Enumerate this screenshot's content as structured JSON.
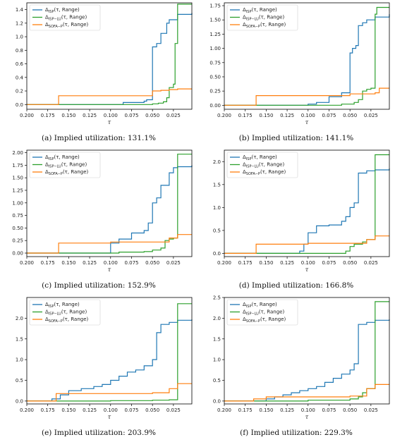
{
  "legend_labels": [
    "Δ_ISP(τ, Range)",
    "Δ_ISP−LU(τ, Range)",
    "Δ_SOFA−P(τ, Range)"
  ],
  "colors": {
    "isp": "#1f77b4",
    "isp_lu": "#2ca02c",
    "sofa_p": "#ff7f0e"
  },
  "chart_data": [
    {
      "type": "line",
      "caption": "(a) Implied utilization: 131.1%",
      "xlabel": "τ",
      "ylabel": "",
      "xlim": [
        0.2,
        0.003
      ],
      "ylim": [
        -0.07,
        1.5
      ],
      "x_ticks": [
        0.2,
        0.175,
        0.15,
        0.125,
        0.1,
        0.075,
        0.05,
        0.025
      ],
      "x_tick_labels": [
        "0.200",
        "0.175",
        "0.150",
        "0.125",
        "0.100",
        "0.075",
        "0.050",
        "0.025"
      ],
      "y_ticks": [
        0.0,
        0.2,
        0.4,
        0.6,
        0.8,
        1.0,
        1.2,
        1.4
      ],
      "y_tick_labels": [
        "0.0",
        "0.2",
        "0.4",
        "0.6",
        "0.8",
        "1.0",
        "1.2",
        "1.4"
      ],
      "grid": false,
      "legend": "top-left",
      "series": [
        {
          "name": "Δ_ISP(τ, Range)",
          "color": "#1f77b4",
          "x": [
            0.2,
            0.085,
            0.06,
            0.057,
            0.05,
            0.045,
            0.04,
            0.033,
            0.03,
            0.02,
            0.003
          ],
          "y": [
            0,
            0.03,
            0.05,
            0.07,
            0.85,
            0.9,
            1.05,
            1.2,
            1.25,
            1.33,
            1.35
          ]
        },
        {
          "name": "Δ_ISP−LU(τ, Range)",
          "color": "#2ca02c",
          "x": [
            0.2,
            0.05,
            0.043,
            0.037,
            0.033,
            0.03,
            0.025,
            0.023,
            0.02,
            0.003
          ],
          "y": [
            0,
            0.01,
            0.02,
            0.04,
            0.1,
            0.25,
            0.3,
            0.9,
            1.48,
            1.48
          ]
        },
        {
          "name": "Δ_SOFA−P(τ, Range)",
          "color": "#ff7f0e",
          "x": [
            0.2,
            0.162,
            0.05,
            0.04,
            0.03,
            0.02,
            0.003
          ],
          "y": [
            0,
            0.13,
            0.2,
            0.21,
            0.22,
            0.23,
            0.23
          ]
        }
      ]
    },
    {
      "type": "line",
      "caption": "(b) Implied utilization: 141.1%",
      "xlabel": "τ",
      "ylabel": "",
      "xlim": [
        0.2,
        0.003
      ],
      "ylim": [
        -0.07,
        1.8
      ],
      "x_ticks": [
        0.2,
        0.175,
        0.15,
        0.125,
        0.1,
        0.075,
        0.05,
        0.025
      ],
      "x_tick_labels": [
        "0.200",
        "0.175",
        "0.150",
        "0.125",
        "0.100",
        "0.075",
        "0.050",
        "0.025"
      ],
      "y_ticks": [
        0.0,
        0.25,
        0.5,
        0.75,
        1.0,
        1.25,
        1.5,
        1.75
      ],
      "y_tick_labels": [
        "0.00",
        "0.25",
        "0.50",
        "0.75",
        "1.00",
        "1.25",
        "1.50",
        "1.75"
      ],
      "grid": false,
      "legend": "top-left",
      "series": [
        {
          "name": "Δ_ISP(τ, Range)",
          "color": "#1f77b4",
          "x": [
            0.2,
            0.1,
            0.09,
            0.075,
            0.06,
            0.05,
            0.047,
            0.043,
            0.04,
            0.035,
            0.03,
            0.02,
            0.003
          ],
          "y": [
            0,
            0.02,
            0.05,
            0.15,
            0.22,
            0.92,
            1.0,
            1.05,
            1.4,
            1.45,
            1.5,
            1.55,
            1.6
          ]
        },
        {
          "name": "Δ_ISP−LU(τ, Range)",
          "color": "#2ca02c",
          "x": [
            0.2,
            0.06,
            0.045,
            0.04,
            0.035,
            0.03,
            0.025,
            0.02,
            0.018,
            0.003
          ],
          "y": [
            0,
            0.02,
            0.05,
            0.1,
            0.25,
            0.28,
            0.3,
            1.6,
            1.72,
            1.72
          ]
        },
        {
          "name": "Δ_SOFA−P(τ, Range)",
          "color": "#ff7f0e",
          "x": [
            0.2,
            0.162,
            0.05,
            0.02,
            0.015,
            0.003
          ],
          "y": [
            0,
            0.17,
            0.2,
            0.22,
            0.3,
            0.3
          ]
        }
      ]
    },
    {
      "type": "line",
      "caption": "(c) Implied utilization: 152.9%",
      "xlabel": "τ",
      "ylabel": "",
      "xlim": [
        0.2,
        0.003
      ],
      "ylim": [
        -0.07,
        2.05
      ],
      "x_ticks": [
        0.2,
        0.175,
        0.15,
        0.125,
        0.1,
        0.075,
        0.05,
        0.025
      ],
      "x_tick_labels": [
        "0.200",
        "0.175",
        "0.150",
        "0.125",
        "0.100",
        "0.075",
        "0.050",
        "0.025"
      ],
      "y_ticks": [
        0.0,
        0.25,
        0.5,
        0.75,
        1.0,
        1.25,
        1.5,
        1.75,
        2.0
      ],
      "y_tick_labels": [
        "0.00",
        "0.25",
        "0.50",
        "0.75",
        "1.00",
        "1.25",
        "1.50",
        "1.75",
        "2.00"
      ],
      "grid": false,
      "legend": "top-left",
      "series": [
        {
          "name": "Δ_ISP(τ, Range)",
          "color": "#1f77b4",
          "x": [
            0.2,
            0.1,
            0.09,
            0.075,
            0.06,
            0.055,
            0.05,
            0.045,
            0.04,
            0.03,
            0.025,
            0.02,
            0.003
          ],
          "y": [
            0,
            0.2,
            0.28,
            0.4,
            0.45,
            0.6,
            1.0,
            1.1,
            1.35,
            1.6,
            1.7,
            1.72,
            1.75
          ]
        },
        {
          "name": "Δ_ISP−LU(τ, Range)",
          "color": "#2ca02c",
          "x": [
            0.2,
            0.09,
            0.06,
            0.05,
            0.04,
            0.035,
            0.03,
            0.025,
            0.02,
            0.003
          ],
          "y": [
            0,
            0.02,
            0.03,
            0.06,
            0.1,
            0.25,
            0.28,
            0.3,
            1.97,
            1.97
          ]
        },
        {
          "name": "Δ_SOFA−P(τ, Range)",
          "color": "#ff7f0e",
          "x": [
            0.2,
            0.162,
            0.1,
            0.03,
            0.02,
            0.003
          ],
          "y": [
            0,
            0.2,
            0.22,
            0.3,
            0.37,
            0.37
          ]
        }
      ]
    },
    {
      "type": "line",
      "caption": "(d) Implied utilization: 166.8%",
      "xlabel": "τ",
      "ylabel": "",
      "xlim": [
        0.2,
        0.003
      ],
      "ylim": [
        -0.07,
        2.25
      ],
      "x_ticks": [
        0.2,
        0.175,
        0.15,
        0.125,
        0.1,
        0.075,
        0.05,
        0.025
      ],
      "x_tick_labels": [
        "0.200",
        "0.175",
        "0.150",
        "0.125",
        "0.100",
        "0.075",
        "0.050",
        "0.025"
      ],
      "y_ticks": [
        0.0,
        0.5,
        1.0,
        1.5,
        2.0
      ],
      "y_tick_labels": [
        "0.0",
        "0.5",
        "1.0",
        "1.5",
        "2.0"
      ],
      "grid": false,
      "legend": "top-left",
      "series": [
        {
          "name": "Δ_ISP(τ, Range)",
          "color": "#1f77b4",
          "x": [
            0.2,
            0.11,
            0.105,
            0.1,
            0.09,
            0.075,
            0.06,
            0.055,
            0.05,
            0.045,
            0.04,
            0.03,
            0.02,
            0.003
          ],
          "y": [
            0,
            0.05,
            0.2,
            0.45,
            0.6,
            0.62,
            0.7,
            0.8,
            1.0,
            1.1,
            1.75,
            1.8,
            1.82,
            1.85
          ]
        },
        {
          "name": "Δ_ISP−LU(τ, Range)",
          "color": "#2ca02c",
          "x": [
            0.2,
            0.055,
            0.05,
            0.045,
            0.035,
            0.03,
            0.02,
            0.003
          ],
          "y": [
            0,
            0.05,
            0.15,
            0.2,
            0.25,
            0.3,
            2.15,
            2.15
          ]
        },
        {
          "name": "Δ_SOFA−P(τ, Range)",
          "color": "#ff7f0e",
          "x": [
            0.2,
            0.162,
            0.1,
            0.03,
            0.02,
            0.003
          ],
          "y": [
            0,
            0.2,
            0.22,
            0.3,
            0.38,
            0.38
          ]
        }
      ]
    },
    {
      "type": "line",
      "caption": "(e) Implied utilization: 203.9%",
      "xlabel": "τ",
      "ylabel": "",
      "xlim": [
        0.2,
        0.003
      ],
      "ylim": [
        -0.07,
        2.5
      ],
      "x_ticks": [
        0.2,
        0.175,
        0.15,
        0.125,
        0.1,
        0.075,
        0.05,
        0.025
      ],
      "x_tick_labels": [
        "0.200",
        "0.175",
        "0.150",
        "0.125",
        "0.100",
        "0.075",
        "0.050",
        "0.025"
      ],
      "y_ticks": [
        0.0,
        0.5,
        1.0,
        1.5,
        2.0
      ],
      "y_tick_labels": [
        "0.0",
        "0.5",
        "1.0",
        "1.5",
        "2.0"
      ],
      "grid": false,
      "legend": "top-left",
      "series": [
        {
          "name": "Δ_ISP(τ, Range)",
          "color": "#1f77b4",
          "x": [
            0.2,
            0.17,
            0.16,
            0.15,
            0.135,
            0.12,
            0.11,
            0.1,
            0.09,
            0.08,
            0.07,
            0.06,
            0.05,
            0.045,
            0.04,
            0.03,
            0.02,
            0.003
          ],
          "y": [
            0,
            0.05,
            0.15,
            0.25,
            0.3,
            0.35,
            0.4,
            0.5,
            0.6,
            0.7,
            0.75,
            0.85,
            1.0,
            1.65,
            1.85,
            1.9,
            1.95,
            1.97
          ]
        },
        {
          "name": "Δ_ISP−LU(τ, Range)",
          "color": "#2ca02c",
          "x": [
            0.2,
            0.1,
            0.05,
            0.03,
            0.02,
            0.003
          ],
          "y": [
            0,
            0.01,
            0.02,
            0.03,
            2.35,
            2.35
          ]
        },
        {
          "name": "Δ_SOFA−P(τ, Range)",
          "color": "#ff7f0e",
          "x": [
            0.2,
            0.165,
            0.05,
            0.03,
            0.02,
            0.003
          ],
          "y": [
            0,
            0.18,
            0.2,
            0.3,
            0.42,
            0.42
          ]
        }
      ]
    },
    {
      "type": "line",
      "caption": "(f) Implied utilization: 229.3%",
      "xlabel": "τ",
      "ylabel": "",
      "xlim": [
        0.2,
        0.003
      ],
      "ylim": [
        -0.07,
        2.5
      ],
      "x_ticks": [
        0.2,
        0.175,
        0.15,
        0.125,
        0.1,
        0.075,
        0.05,
        0.025
      ],
      "x_tick_labels": [
        "0.200",
        "0.175",
        "0.150",
        "0.125",
        "0.100",
        "0.075",
        "0.050",
        "0.025"
      ],
      "y_ticks": [
        0.0,
        0.5,
        1.0,
        1.5,
        2.0,
        2.5
      ],
      "y_tick_labels": [
        "0.0",
        "0.5",
        "1.0",
        "1.5",
        "2.0",
        "2.5"
      ],
      "grid": false,
      "legend": "top-left",
      "series": [
        {
          "name": "Δ_ISP(τ, Range)",
          "color": "#1f77b4",
          "x": [
            0.2,
            0.15,
            0.14,
            0.13,
            0.12,
            0.11,
            0.1,
            0.09,
            0.08,
            0.07,
            0.06,
            0.05,
            0.045,
            0.04,
            0.03,
            0.02,
            0.003
          ],
          "y": [
            0,
            0.05,
            0.1,
            0.15,
            0.2,
            0.25,
            0.3,
            0.35,
            0.45,
            0.55,
            0.65,
            0.75,
            0.9,
            1.85,
            1.9,
            1.95,
            1.97
          ]
        },
        {
          "name": "Δ_ISP−LU(τ, Range)",
          "color": "#2ca02c",
          "x": [
            0.2,
            0.1,
            0.05,
            0.04,
            0.035,
            0.03,
            0.02,
            0.003
          ],
          "y": [
            0,
            0.02,
            0.05,
            0.1,
            0.2,
            0.3,
            2.4,
            2.4
          ]
        },
        {
          "name": "Δ_SOFA−P(τ, Range)",
          "color": "#ff7f0e",
          "x": [
            0.2,
            0.165,
            0.15,
            0.05,
            0.03,
            0.02,
            0.003
          ],
          "y": [
            0,
            0.05,
            0.1,
            0.12,
            0.3,
            0.4,
            0.4
          ]
        }
      ]
    }
  ]
}
